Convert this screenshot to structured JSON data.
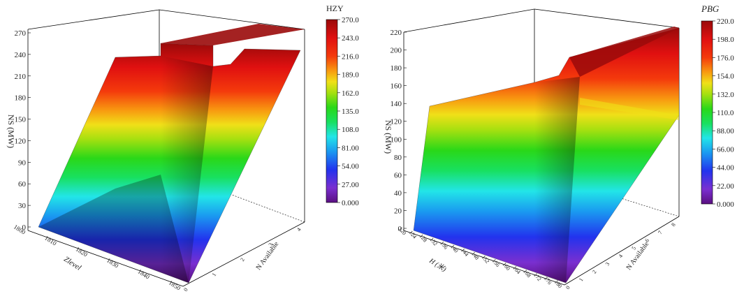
{
  "chart_data": [
    {
      "type": "surface3d",
      "title": "",
      "colorbar_title": "HZY",
      "zlabel": "NS (MW)",
      "xlabel": "Zlevel",
      "ylabel": "N Available",
      "x_ticks": [
        "1800",
        "1810",
        "1820",
        "1830",
        "1840",
        "1850"
      ],
      "y_ticks": [
        "0",
        "1",
        "2",
        "3",
        "4"
      ],
      "z_ticks": [
        "0",
        "30",
        "60",
        "90",
        "120",
        "150",
        "180",
        "210",
        "240",
        "270"
      ],
      "zlim": [
        0,
        270
      ],
      "colorbar_ticks": [
        "270.0",
        "243.0",
        "216.0",
        "189.0",
        "162.0",
        "135.0",
        "108.0",
        "81.00",
        "54.00",
        "27.00",
        "0.000"
      ],
      "colorbar_range": [
        0,
        270
      ],
      "surface_max_by_n_available": [
        0,
        110,
        170,
        235,
        265
      ]
    },
    {
      "type": "surface3d",
      "title": "",
      "colorbar_title": "PBG",
      "zlabel": "NS (MW)",
      "xlabel": "H (米)",
      "ylabel": "N Available",
      "x_ticks": [
        "120",
        "124",
        "128",
        "132",
        "136",
        "140",
        "144",
        "148",
        "152",
        "156",
        "160",
        "164",
        "168",
        "172",
        "176",
        "180"
      ],
      "y_ticks": [
        "0",
        "1",
        "2",
        "3",
        "4",
        "5",
        "6",
        "7",
        "8"
      ],
      "z_ticks": [
        "0",
        "20",
        "40",
        "60",
        "80",
        "100",
        "120",
        "140",
        "160",
        "180",
        "200",
        "220"
      ],
      "zlim": [
        0,
        220
      ],
      "colorbar_ticks": [
        "220.0",
        "198.0",
        "176.0",
        "154.0",
        "132.0",
        "110.0",
        "88.00",
        "66.00",
        "44.00",
        "22.00",
        "0.000"
      ],
      "colorbar_range": [
        0,
        220
      ],
      "surface_max_by_n_available": [
        0,
        135,
        215
      ]
    }
  ],
  "colors": {
    "gradient": [
      "#5a0f80",
      "#7a2fd0",
      "#2233ee",
      "#1a9af0",
      "#22e5e8",
      "#18e060",
      "#2ad818",
      "#a6e010",
      "#f0e018",
      "#f89a10",
      "#f43a0c",
      "#e01010",
      "#9a0a0a"
    ],
    "frame": "#000000",
    "grid": "#888888"
  }
}
